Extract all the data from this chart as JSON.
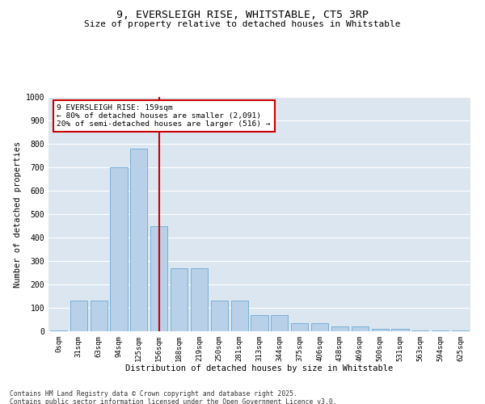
{
  "title_line1": "9, EVERSLEIGH RISE, WHITSTABLE, CT5 3RP",
  "title_line2": "Size of property relative to detached houses in Whitstable",
  "xlabel": "Distribution of detached houses by size in Whitstable",
  "ylabel": "Number of detached properties",
  "categories": [
    "0sqm",
    "31sqm",
    "63sqm",
    "94sqm",
    "125sqm",
    "156sqm",
    "188sqm",
    "219sqm",
    "250sqm",
    "281sqm",
    "313sqm",
    "344sqm",
    "375sqm",
    "406sqm",
    "438sqm",
    "469sqm",
    "500sqm",
    "531sqm",
    "563sqm",
    "594sqm",
    "625sqm"
  ],
  "values": [
    5,
    130,
    130,
    700,
    780,
    450,
    270,
    270,
    130,
    130,
    70,
    70,
    35,
    35,
    20,
    20,
    10,
    10,
    5,
    5,
    5
  ],
  "bar_color": "#b8d0e8",
  "bar_edge_color": "#6aaad4",
  "vline_x_index": 5,
  "vline_color": "#cc0000",
  "annotation_text": "9 EVERSLEIGH RISE: 159sqm\n← 80% of detached houses are smaller (2,091)\n20% of semi-detached houses are larger (516) →",
  "annotation_box_color": "#ffffff",
  "annotation_box_edge": "#cc0000",
  "ylim": [
    0,
    1000
  ],
  "yticks": [
    0,
    100,
    200,
    300,
    400,
    500,
    600,
    700,
    800,
    900,
    1000
  ],
  "bg_color": "#dce6f1",
  "footer_line1": "Contains HM Land Registry data © Crown copyright and database right 2025.",
  "footer_line2": "Contains public sector information licensed under the Open Government Licence v3.0."
}
